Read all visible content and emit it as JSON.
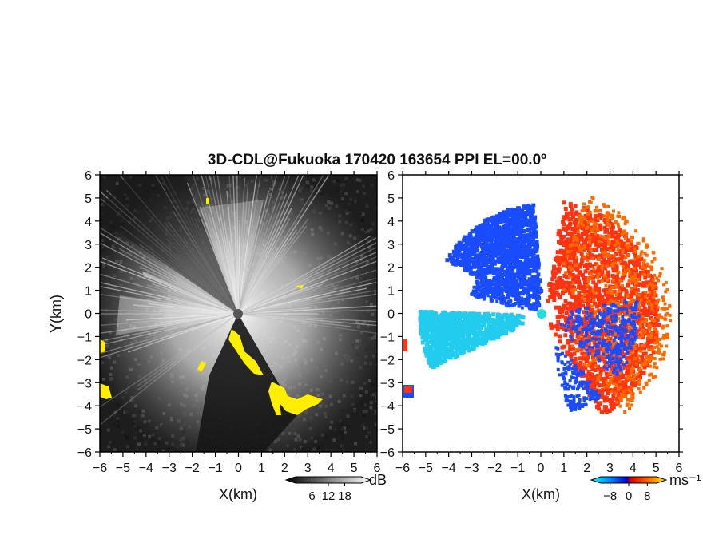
{
  "chart_data": {
    "title": "3D-CDL@Fukuoka 170420 163654 PPI EL=00.0º",
    "panels": [
      {
        "type": "heatmap",
        "quantity": "reflectivity",
        "xlabel": "X(km)",
        "ylabel": "Y(km)",
        "xlim": [
          -6,
          6
        ],
        "ylim": [
          -6,
          6
        ],
        "xticks": [
          "−6",
          "−5",
          "−4",
          "−3",
          "−2",
          "−1",
          "0",
          "1",
          "2",
          "3",
          "4",
          "5",
          "6"
        ],
        "yticks": [
          "6",
          "5",
          "4",
          "3",
          "2",
          "1",
          "0",
          "−1",
          "−2",
          "−3",
          "−4",
          "−5",
          "−6"
        ],
        "colorbar": {
          "unit": "dB",
          "ticks": [
            "6",
            "12",
            "18"
          ],
          "values": [
            6,
            12,
            18
          ],
          "range": [
            0,
            24
          ]
        },
        "colors": {
          "low": "#1a1a1a",
          "high": "#f2f2f2",
          "flag": "#ffee00"
        }
      },
      {
        "type": "heatmap",
        "quantity": "doppler velocity",
        "xlabel": "X(km)",
        "xlim": [
          -6,
          6
        ],
        "ylim": [
          -6,
          6
        ],
        "xticks": [
          "−6",
          "−5",
          "−4",
          "−3",
          "−2",
          "−1",
          "0",
          "1",
          "2",
          "3",
          "4",
          "5",
          "6"
        ],
        "yticks": [
          "6",
          "5",
          "4",
          "3",
          "2",
          "1",
          "0",
          "−1",
          "−2",
          "−3",
          "−4",
          "−5",
          "−6"
        ],
        "colorbar": {
          "unit": "ms⁻¹",
          "ticks": [
            "−8",
            "0",
            "8"
          ],
          "values": [
            -8,
            0,
            8
          ],
          "range": [
            -12,
            12
          ]
        },
        "colors": {
          "approach": "#1a4cff",
          "approach_strong": "#22ccee",
          "recede": "#ff3311",
          "recede_strong": "#ff7700",
          "radar_site": "#22dddd"
        }
      }
    ]
  }
}
